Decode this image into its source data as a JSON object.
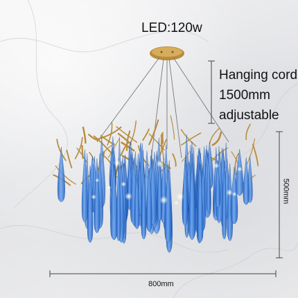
{
  "product": {
    "power_label": "LED:120w",
    "cord_lines": [
      "Hanging cord:",
      "1500mm",
      "adjustable"
    ],
    "height_label": "500mm",
    "width_label": "800mm"
  },
  "colors": {
    "crystal": "#1f5fc2",
    "crystal_light": "#6fa6ee",
    "brass": "#b88c3c",
    "dimension_line": "#444444"
  },
  "icons": [
    "chandelier-illustration",
    "marble-background"
  ]
}
